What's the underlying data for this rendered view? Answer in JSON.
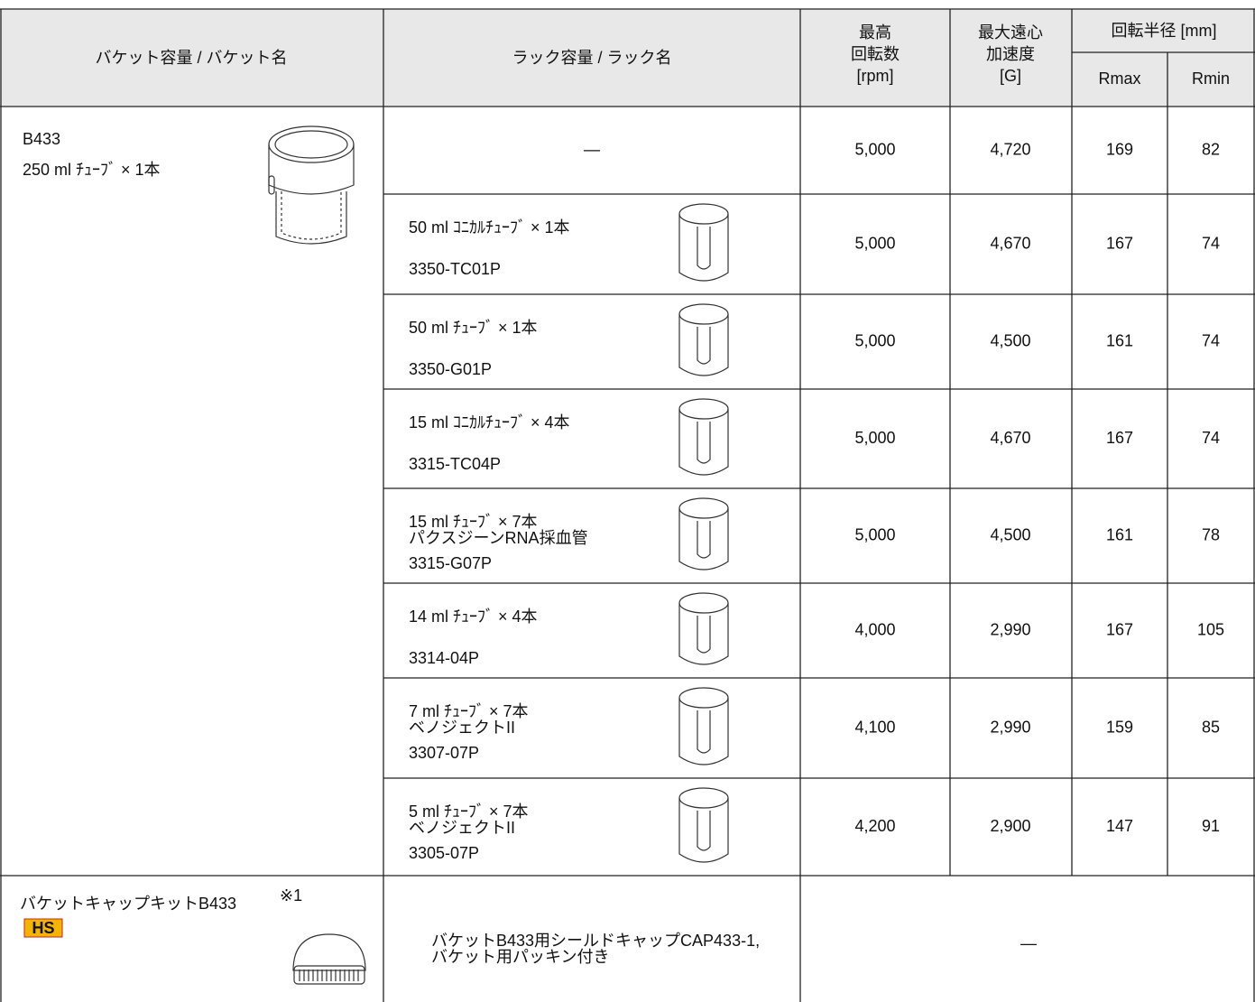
{
  "table": {
    "header": {
      "bucket": "バケット容量 / バケット名",
      "rack": "ラック容量 / ラック名",
      "max_speed": [
        "最高",
        "回転数",
        "[rpm]"
      ],
      "max_rcf": [
        "最大遠心",
        "加速度",
        "[G]"
      ],
      "radius": "回転半径 [mm]",
      "rmax": "Rmax",
      "rmin": "Rmin"
    },
    "bucket": {
      "name": "B433",
      "capacity": "250 ml ﾁｭｰﾌﾞ × 1本"
    },
    "rows": [
      {
        "rack": "—",
        "speed": "5,000",
        "rcf": "4,720",
        "rmax": "169",
        "rmin": "82"
      },
      {
        "capacity": "50 ml ｺﾆｶﾙﾁｭｰﾌﾞ × 1本",
        "name": "3350-TC01P",
        "speed": "5,000",
        "rcf": "4,670",
        "rmax": "167",
        "rmin": "74"
      },
      {
        "capacity": "50 ml ﾁｭｰﾌﾞ × 1本",
        "name": "3350-G01P",
        "speed": "5,000",
        "rcf": "4,500",
        "rmax": "161",
        "rmin": "74"
      },
      {
        "capacity": "15 ml ｺﾆｶﾙﾁｭｰﾌﾞ × 4本",
        "name": "3315-TC04P",
        "speed": "5,000",
        "rcf": "4,670",
        "rmax": "167",
        "rmin": "74"
      },
      {
        "capacity": "15 ml ﾁｭｰﾌﾞ × 7本",
        "note": "パクスジーンRNA採血管",
        "name": "3315-G07P",
        "speed": "5,000",
        "rcf": "4,500",
        "rmax": "161",
        "rmin": "78"
      },
      {
        "capacity": "14 ml ﾁｭｰﾌﾞ × 4本",
        "name": "3314-04P",
        "speed": "4,000",
        "rcf": "2,990",
        "rmax": "167",
        "rmin": "105"
      },
      {
        "capacity": "7 ml ﾁｭｰﾌﾞ × 7本",
        "note": "ベノジェクトII",
        "name": "3307-07P",
        "speed": "4,100",
        "rcf": "2,990",
        "rmax": "159",
        "rmin": "85"
      },
      {
        "capacity": "5 ml ﾁｭｰﾌﾞ × 7本",
        "note": "ベノジェクトII",
        "name": "3305-07P",
        "speed": "4,200",
        "rcf": "2,900",
        "rmax": "147",
        "rmin": "91"
      }
    ],
    "cap_kit": {
      "name": "バケットキャップキットB433",
      "note": "※1",
      "badge": "HS",
      "description": [
        "バケットB433用シールドキャップCAP433-1,",
        "バケット用パッキン付き"
      ],
      "values": "—"
    }
  }
}
